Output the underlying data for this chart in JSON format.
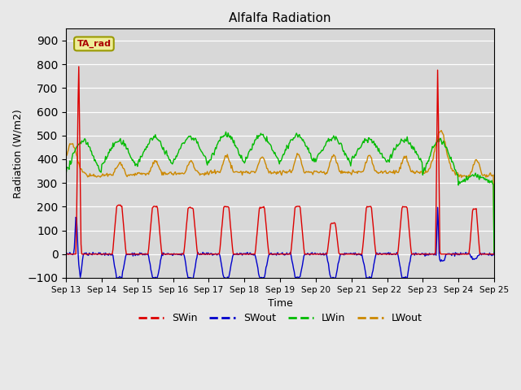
{
  "title": "Alfalfa Radiation",
  "xlabel": "Time",
  "ylabel": "Radiation (W/m2)",
  "ylim": [
    -100,
    950
  ],
  "yticks": [
    -100,
    0,
    100,
    200,
    300,
    400,
    500,
    600,
    700,
    800,
    900
  ],
  "colors": {
    "SWin": "#dd0000",
    "SWout": "#0000cc",
    "LWin": "#00bb00",
    "LWout": "#cc8800"
  },
  "fig_facecolor": "#e8e8e8",
  "plot_bg_color": "#d8d8d8",
  "legend_label": "TA_rad",
  "legend_label_color": "#aa0000",
  "legend_box_color": "#eeee99",
  "legend_box_edge": "#999900",
  "figsize": [
    6.4,
    4.8
  ],
  "dpi": 100
}
